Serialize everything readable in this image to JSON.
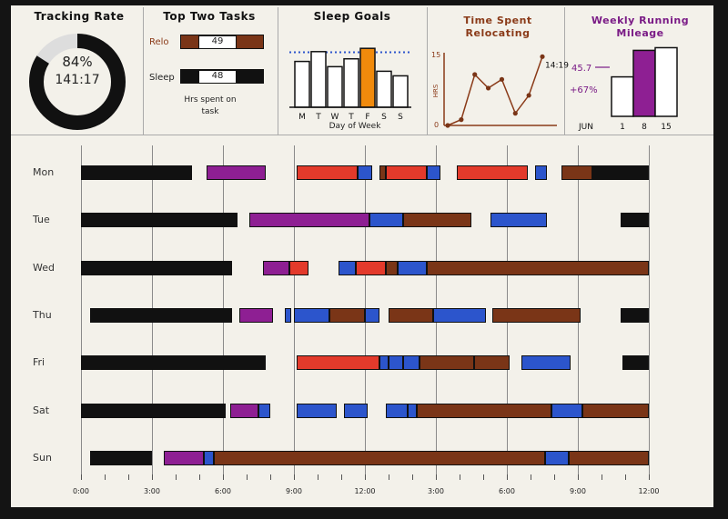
{
  "panels": {
    "tracking": {
      "title": "Tracking Rate",
      "percent": "84%",
      "time": "141:17",
      "rate": 0.84
    },
    "top_tasks": {
      "title": "Top Two Tasks",
      "tasks": [
        {
          "label": "Relo",
          "value": 49
        },
        {
          "label": "Sleep",
          "value": 48
        }
      ],
      "caption": "Hrs spent on task"
    },
    "sleep": {
      "title": "Sleep Goals",
      "xlabel": "Day of Week",
      "days": [
        "M",
        "T",
        "W",
        "T",
        "F",
        "S",
        "S"
      ],
      "values": [
        7.0,
        8.5,
        6.2,
        7.4,
        9.0,
        5.5,
        4.8
      ],
      "goal": 8.4,
      "highlight": 4
    },
    "reloc": {
      "title": "Time Spent Relocating",
      "ylabel": "HRS",
      "ymax": "15",
      "ymin": "0",
      "values": [
        0,
        1.2,
        10.5,
        7.7,
        9.5,
        2.5,
        6.2,
        14.19
      ],
      "annotation": "14:19"
    },
    "running": {
      "title": "Weekly Running Mileage",
      "values": [
        {
          "x": "1",
          "y": 45.7
        },
        {
          "x": "8",
          "y": 76.4
        },
        {
          "x": "15",
          "y": 79.5
        }
      ],
      "annotation_value": "45.7",
      "annotation_pct": "+67%",
      "month": "JUN"
    }
  },
  "colors": {
    "black": "#111111",
    "purple": "#8e1f93",
    "red": "#e33a2b",
    "blue": "#2c55cc",
    "brown": "#7a3517",
    "orange": "#f08a0c"
  },
  "chart_data": {
    "type": "bar",
    "title": "",
    "x_ticks": [
      "0:00",
      "3:00",
      "6:00",
      "9:00",
      "12:00",
      "3:00",
      "6:00",
      "9:00",
      "12:00"
    ],
    "xlim": [
      0,
      24
    ],
    "categories": [
      "Mon",
      "Tue",
      "Wed",
      "Thu",
      "Fri",
      "Sat",
      "Sun"
    ],
    "days": [
      {
        "day": "Mon",
        "segments": [
          {
            "s": 0,
            "e": 4.7,
            "c": "black"
          },
          {
            "s": 5.3,
            "e": 7.8,
            "c": "purple"
          },
          {
            "s": 9.1,
            "e": 11.7,
            "c": "red"
          },
          {
            "s": 11.7,
            "e": 12.3,
            "c": "blue"
          },
          {
            "s": 12.6,
            "e": 12.9,
            "c": "brown"
          },
          {
            "s": 12.9,
            "e": 14.6,
            "c": "red"
          },
          {
            "s": 14.6,
            "e": 15.2,
            "c": "blue"
          },
          {
            "s": 15.9,
            "e": 18.9,
            "c": "red"
          },
          {
            "s": 19.2,
            "e": 19.7,
            "c": "blue"
          },
          {
            "s": 20.3,
            "e": 21.6,
            "c": "brown"
          },
          {
            "s": 21.6,
            "e": 24,
            "c": "black"
          }
        ]
      },
      {
        "day": "Tue",
        "segments": [
          {
            "s": 0,
            "e": 6.6,
            "c": "black"
          },
          {
            "s": 7.1,
            "e": 12.2,
            "c": "purple"
          },
          {
            "s": 12.2,
            "e": 13.6,
            "c": "blue"
          },
          {
            "s": 13.6,
            "e": 16.5,
            "c": "brown"
          },
          {
            "s": 17.3,
            "e": 19.7,
            "c": "blue"
          },
          {
            "s": 22.8,
            "e": 24,
            "c": "black"
          }
        ]
      },
      {
        "day": "Wed",
        "segments": [
          {
            "s": 0,
            "e": 6.4,
            "c": "black"
          },
          {
            "s": 7.7,
            "e": 8.8,
            "c": "purple"
          },
          {
            "s": 8.8,
            "e": 9.6,
            "c": "red"
          },
          {
            "s": 10.9,
            "e": 11.6,
            "c": "blue"
          },
          {
            "s": 11.6,
            "e": 12.9,
            "c": "red"
          },
          {
            "s": 12.9,
            "e": 13.4,
            "c": "brown"
          },
          {
            "s": 13.4,
            "e": 14.6,
            "c": "blue"
          },
          {
            "s": 14.6,
            "e": 24,
            "c": "brown"
          }
        ]
      },
      {
        "day": "Thu",
        "segments": [
          {
            "s": 0.4,
            "e": 6.4,
            "c": "black"
          },
          {
            "s": 6.7,
            "e": 8.1,
            "c": "purple"
          },
          {
            "s": 8.6,
            "e": 8.9,
            "c": "blue"
          },
          {
            "s": 9.0,
            "e": 10.5,
            "c": "blue"
          },
          {
            "s": 10.5,
            "e": 12.0,
            "c": "brown"
          },
          {
            "s": 12.0,
            "e": 12.6,
            "c": "blue"
          },
          {
            "s": 13.0,
            "e": 14.9,
            "c": "brown"
          },
          {
            "s": 14.9,
            "e": 17.1,
            "c": "blue"
          },
          {
            "s": 17.4,
            "e": 21.1,
            "c": "brown"
          },
          {
            "s": 22.8,
            "e": 24,
            "c": "black"
          }
        ]
      },
      {
        "day": "Fri",
        "segments": [
          {
            "s": 0,
            "e": 7.8,
            "c": "black"
          },
          {
            "s": 9.1,
            "e": 12.6,
            "c": "red"
          },
          {
            "s": 12.6,
            "e": 13.0,
            "c": "blue"
          },
          {
            "s": 13.0,
            "e": 13.6,
            "c": "blue"
          },
          {
            "s": 13.6,
            "e": 14.3,
            "c": "blue"
          },
          {
            "s": 14.3,
            "e": 16.6,
            "c": "brown"
          },
          {
            "s": 16.6,
            "e": 18.1,
            "c": "brown"
          },
          {
            "s": 18.6,
            "e": 20.7,
            "c": "blue"
          },
          {
            "s": 22.9,
            "e": 24,
            "c": "black"
          }
        ]
      },
      {
        "day": "Sat",
        "segments": [
          {
            "s": 0,
            "e": 6.1,
            "c": "black"
          },
          {
            "s": 6.3,
            "e": 7.5,
            "c": "purple"
          },
          {
            "s": 7.5,
            "e": 8.0,
            "c": "blue"
          },
          {
            "s": 9.1,
            "e": 10.8,
            "c": "blue"
          },
          {
            "s": 11.1,
            "e": 12.1,
            "c": "blue"
          },
          {
            "s": 12.9,
            "e": 13.8,
            "c": "blue"
          },
          {
            "s": 13.8,
            "e": 14.2,
            "c": "blue"
          },
          {
            "s": 14.2,
            "e": 19.9,
            "c": "brown"
          },
          {
            "s": 19.9,
            "e": 21.2,
            "c": "blue"
          },
          {
            "s": 21.2,
            "e": 24,
            "c": "brown"
          }
        ]
      },
      {
        "day": "Sun",
        "segments": [
          {
            "s": 0.4,
            "e": 3.0,
            "c": "black"
          },
          {
            "s": 3.5,
            "e": 5.2,
            "c": "purple"
          },
          {
            "s": 5.2,
            "e": 5.6,
            "c": "blue"
          },
          {
            "s": 5.6,
            "e": 19.6,
            "c": "brown"
          },
          {
            "s": 19.6,
            "e": 20.6,
            "c": "blue"
          },
          {
            "s": 20.6,
            "e": 24,
            "c": "brown"
          }
        ]
      }
    ]
  }
}
